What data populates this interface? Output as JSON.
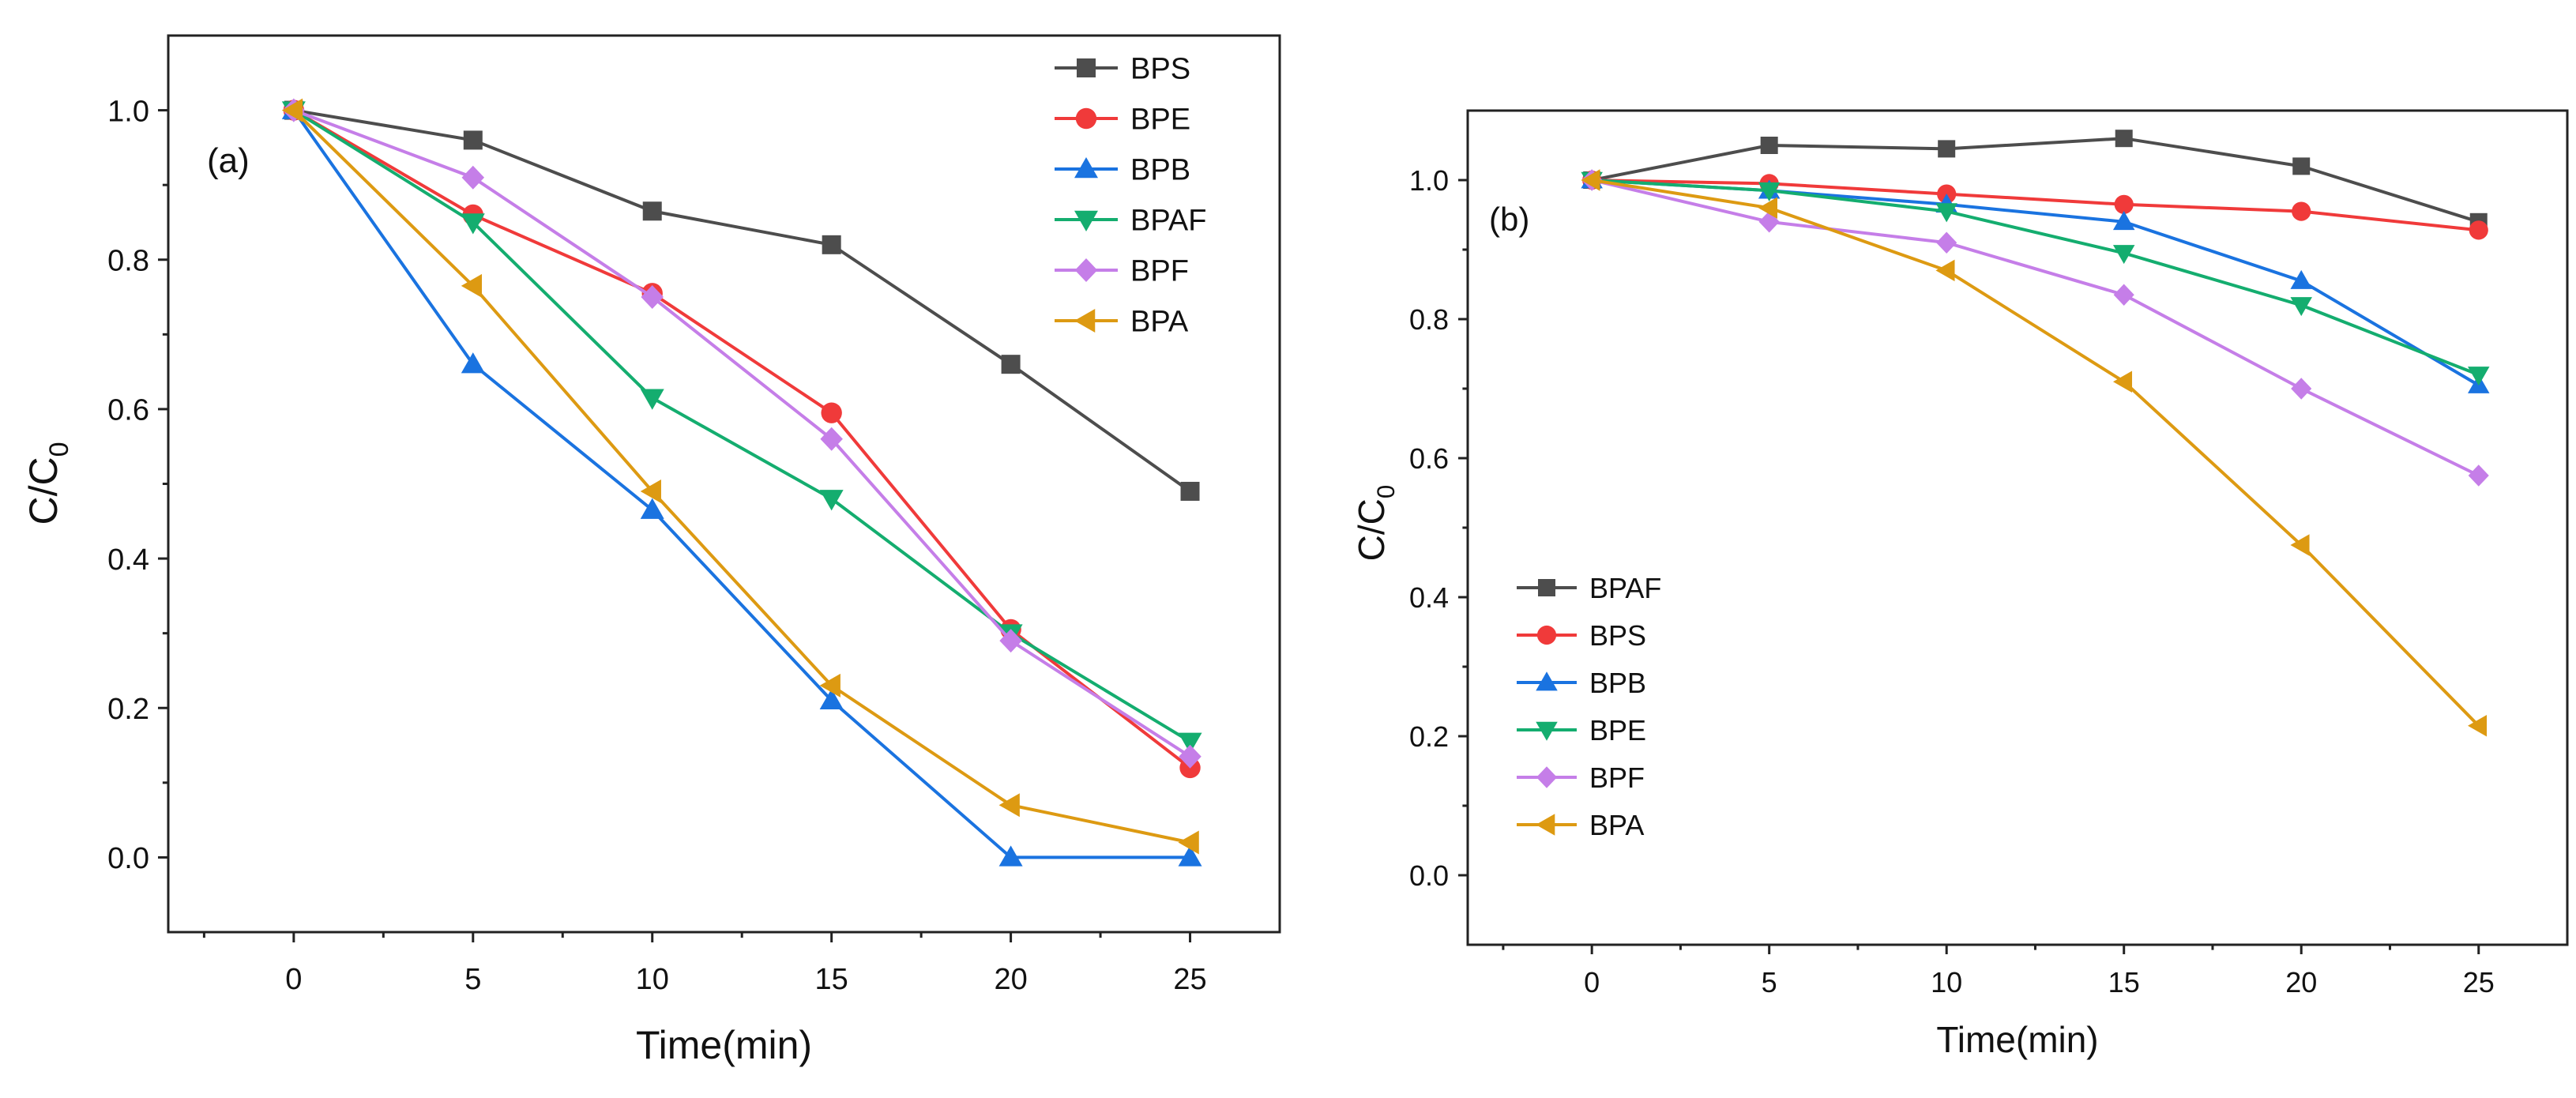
{
  "chart_data": [
    {
      "type": "line",
      "panel_label": "(a)",
      "xlabel": "Time(min)",
      "ylabel_main": "C/C",
      "ylabel_sub": "0",
      "xlim": [
        -3.5,
        27.5
      ],
      "ylim": [
        -0.1,
        1.1
      ],
      "x_ticks": [
        0,
        5,
        10,
        15,
        20,
        25
      ],
      "x_tick_labels": [
        "0",
        "5",
        "10",
        "15",
        "20",
        "25"
      ],
      "y_ticks": [
        0.0,
        0.2,
        0.4,
        0.6,
        0.8,
        1.0
      ],
      "y_tick_labels": [
        "0.0",
        "0.2",
        "0.4",
        "0.6",
        "0.8",
        "1.0"
      ],
      "legend_position": "top-right",
      "x": [
        0,
        5,
        10,
        15,
        20,
        25
      ],
      "series": [
        {
          "name": "BPS",
          "color": "#4d4d4d",
          "marker": "square",
          "values": [
            1.0,
            0.96,
            0.865,
            0.82,
            0.66,
            0.49
          ]
        },
        {
          "name": "BPE",
          "color": "#f03a3a",
          "marker": "circle",
          "values": [
            1.0,
            0.86,
            0.755,
            0.595,
            0.305,
            0.12
          ]
        },
        {
          "name": "BPB",
          "color": "#1a73e0",
          "marker": "triangle-up",
          "values": [
            1.0,
            0.66,
            0.465,
            0.21,
            0.0,
            0.0
          ]
        },
        {
          "name": "BPAF",
          "color": "#14ad6f",
          "marker": "triangle-down",
          "values": [
            1.0,
            0.85,
            0.615,
            0.48,
            0.3,
            0.155
          ]
        },
        {
          "name": "BPF",
          "color": "#c57ee8",
          "marker": "diamond",
          "values": [
            1.0,
            0.91,
            0.75,
            0.56,
            0.29,
            0.135
          ]
        },
        {
          "name": "BPA",
          "color": "#dd9a12",
          "marker": "triangle-left",
          "values": [
            1.0,
            0.765,
            0.49,
            0.23,
            0.07,
            0.02
          ]
        }
      ]
    },
    {
      "type": "line",
      "panel_label": "(b)",
      "xlabel": "Time(min)",
      "ylabel_main": "C/C",
      "ylabel_sub": "0",
      "xlim": [
        -3.5,
        27.5
      ],
      "ylim": [
        -0.1,
        1.1
      ],
      "x_ticks": [
        0,
        5,
        10,
        15,
        20,
        25
      ],
      "x_tick_labels": [
        "0",
        "5",
        "10",
        "15",
        "20",
        "25"
      ],
      "y_ticks": [
        0.0,
        0.2,
        0.4,
        0.6,
        0.8,
        1.0
      ],
      "y_tick_labels": [
        "0.0",
        "0.2",
        "0.4",
        "0.6",
        "0.8",
        "1.0"
      ],
      "legend_position": "bottom-left",
      "x": [
        0,
        5,
        10,
        15,
        20,
        25
      ],
      "series": [
        {
          "name": "BPAF",
          "color": "#4d4d4d",
          "marker": "square",
          "values": [
            1.0,
            1.05,
            1.045,
            1.06,
            1.02,
            0.94
          ]
        },
        {
          "name": "BPS",
          "color": "#f03a3a",
          "marker": "circle",
          "values": [
            1.0,
            0.995,
            0.98,
            0.965,
            0.955,
            0.928
          ]
        },
        {
          "name": "BPB",
          "color": "#1a73e0",
          "marker": "triangle-up",
          "values": [
            1.0,
            0.985,
            0.965,
            0.94,
            0.855,
            0.705
          ]
        },
        {
          "name": "BPE",
          "color": "#14ad6f",
          "marker": "triangle-down",
          "values": [
            1.0,
            0.985,
            0.955,
            0.895,
            0.82,
            0.72
          ]
        },
        {
          "name": "BPF",
          "color": "#c57ee8",
          "marker": "diamond",
          "values": [
            1.0,
            0.94,
            0.91,
            0.835,
            0.7,
            0.575
          ]
        },
        {
          "name": "BPA",
          "color": "#dd9a12",
          "marker": "triangle-left",
          "values": [
            1.0,
            0.96,
            0.87,
            0.71,
            0.475,
            0.215
          ]
        }
      ]
    }
  ]
}
